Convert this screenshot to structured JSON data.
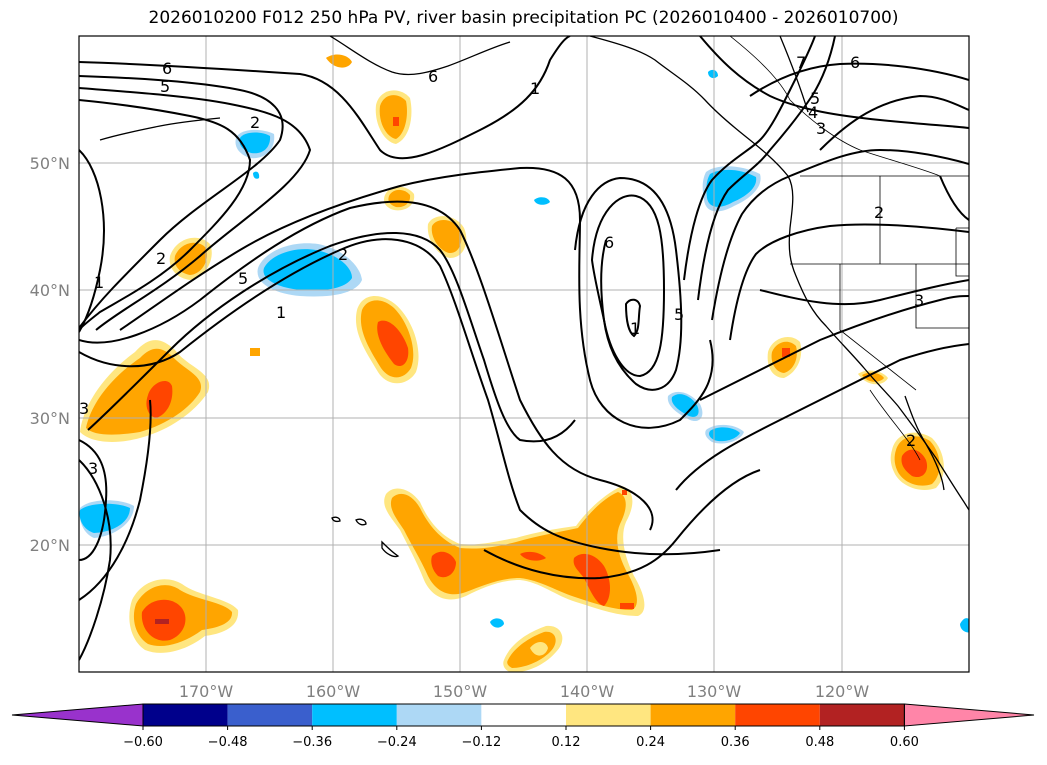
{
  "title": "2026010200 F012 250 hPa PV, river basin precipitation PC (2026010400 - 2026010700)",
  "axes": {
    "lon_labels": [
      "170°W",
      "160°W",
      "150°W",
      "140°W",
      "130°W",
      "120°W"
    ],
    "lat_labels": [
      "50°N",
      "40°N",
      "30°N",
      "20°N"
    ],
    "lon_range": [
      -180,
      -110
    ],
    "lat_range": [
      10,
      60
    ],
    "grid": true
  },
  "colorbar": {
    "ticks": [
      "−0.60",
      "−0.48",
      "−0.36",
      "−0.24",
      "−0.12",
      "0.12",
      "0.24",
      "0.36",
      "0.48",
      "0.60"
    ],
    "levels": [
      -0.6,
      -0.48,
      -0.36,
      -0.24,
      -0.12,
      0.12,
      0.24,
      0.36,
      0.48,
      0.6
    ],
    "colors": [
      "#9932cc",
      "#00008b",
      "#3a5fcd",
      "#00bfff",
      "#add8f5",
      "#ffffff",
      "#ffe680",
      "#ffa500",
      "#ff4500",
      "#b22222",
      "#ff85a8"
    ],
    "extend": "both"
  },
  "contour_labels": [
    "6",
    "5",
    "6",
    "1",
    "7",
    "6",
    "5",
    "4",
    "3",
    "2",
    "5",
    "2",
    "1",
    "1",
    "2",
    "6",
    "5",
    "1",
    "2",
    "3",
    "3",
    "3",
    "2"
  ],
  "colors": {
    "orange": "#ffa500",
    "yellow": "#ffe680",
    "red_orange": "#ff4500",
    "dark_red": "#b22222",
    "cyan": "#00bfff",
    "light_blue": "#add8f5"
  }
}
